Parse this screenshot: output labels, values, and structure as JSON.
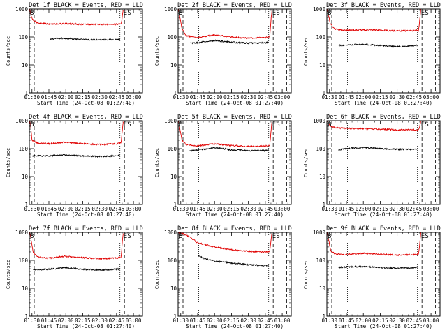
{
  "colors": {
    "events": "#000000",
    "lld": "#e00000",
    "background": "#ffffff",
    "axes": "#000000"
  },
  "chart_data": [
    {
      "type": "line",
      "title": "Det 1f BLACK = Events, RED = LLD",
      "xlabel": "Start Time (24-Oct-08 01:27:40)",
      "ylabel": "Counts/sec",
      "yscale": "log",
      "ylim": [
        1,
        1000
      ],
      "xlim": [
        "01:27:40",
        "03:08:00"
      ],
      "x_tick_labels": [
        "01:30",
        "01:45",
        "02:00",
        "02:15",
        "02:30",
        "02:45",
        "03:00"
      ],
      "y_tick_labels": [
        "1",
        "10",
        "100",
        "1000"
      ],
      "annotations": [
        {
          "text": "B",
          "x": "01:27:40"
        },
        {
          "text": "E",
          "x": "02:50:30"
        },
        {
          "text": "S",
          "x": "02:54:00"
        }
      ],
      "vlines": {
        "dashed": [
          "01:32:00",
          "02:52:00",
          "03:04:00"
        ],
        "dotted": [
          "01:46:00",
          "02:48:00"
        ]
      },
      "series": [
        {
          "name": "Events",
          "x": [
            "01:46",
            "01:50",
            "02:00",
            "02:10",
            "02:20",
            "02:30",
            "02:40",
            "02:48"
          ],
          "values": [
            80,
            88,
            90,
            82,
            80,
            80,
            80,
            82
          ]
        },
        {
          "name": "LLD",
          "x": [
            "01:28",
            "01:29",
            "01:31",
            "01:35",
            "01:45",
            "02:00",
            "02:15",
            "02:30",
            "02:45",
            "02:49",
            "02:50",
            "02:51"
          ],
          "values": [
            1000,
            600,
            400,
            320,
            290,
            300,
            285,
            280,
            285,
            290,
            500,
            1000
          ]
        }
      ]
    },
    {
      "type": "line",
      "title": "Det 2f BLACK = Events, RED = LLD",
      "xlabel": "Start Time (24-Oct-08 01:27:40)",
      "ylabel": "Counts/sec",
      "yscale": "log",
      "ylim": [
        1,
        1000
      ],
      "xlim": [
        "01:27:40",
        "03:08:00"
      ],
      "x_tick_labels": [
        "01:30",
        "01:45",
        "02:00",
        "02:15",
        "02:30",
        "02:45",
        "03:00"
      ],
      "y_tick_labels": [
        "1",
        "10",
        "100",
        "1000"
      ],
      "annotations": [
        {
          "text": "B",
          "x": "01:27:40"
        },
        {
          "text": "E",
          "x": "02:50:30"
        },
        {
          "text": "S",
          "x": "02:54:00"
        }
      ],
      "vlines": {
        "dashed": [
          "01:32:00",
          "02:52:00",
          "03:04:00"
        ],
        "dotted": [
          "01:46:00",
          "02:48:00"
        ]
      },
      "series": [
        {
          "name": "Events",
          "x": [
            "01:38",
            "01:45",
            "02:00",
            "02:15",
            "02:30",
            "02:45",
            "02:48"
          ],
          "values": [
            60,
            62,
            75,
            65,
            60,
            62,
            65
          ]
        },
        {
          "name": "LLD",
          "x": [
            "01:28",
            "01:29",
            "01:31",
            "01:35",
            "01:45",
            "02:00",
            "02:15",
            "02:30",
            "02:45",
            "02:49",
            "02:50",
            "02:51"
          ],
          "values": [
            1000,
            600,
            200,
            110,
            95,
            120,
            100,
            90,
            95,
            100,
            400,
            1000
          ]
        }
      ]
    },
    {
      "type": "line",
      "title": "Det 3f BLACK = Events, RED = LLD",
      "xlabel": "Start Time (24-Oct-08 01:27:40)",
      "ylabel": "Counts/sec",
      "yscale": "log",
      "ylim": [
        1,
        1000
      ],
      "xlim": [
        "01:27:40",
        "03:08:00"
      ],
      "x_tick_labels": [
        "01:30",
        "01:45",
        "02:00",
        "02:15",
        "02:30",
        "02:45",
        "03:00"
      ],
      "y_tick_labels": [
        "1",
        "10",
        "100",
        "1000"
      ],
      "annotations": [
        {
          "text": "B",
          "x": "01:27:40"
        },
        {
          "text": "E",
          "x": "02:50:30"
        },
        {
          "text": "S",
          "x": "02:54:00"
        }
      ],
      "vlines": {
        "dashed": [
          "01:32:00",
          "02:52:00",
          "03:04:00"
        ],
        "dotted": [
          "01:46:00",
          "02:48:00"
        ]
      },
      "series": [
        {
          "name": "Events",
          "x": [
            "01:38",
            "01:45",
            "02:00",
            "02:15",
            "02:30",
            "02:45",
            "02:48"
          ],
          "values": [
            50,
            52,
            55,
            50,
            45,
            48,
            50
          ]
        },
        {
          "name": "LLD",
          "x": [
            "01:28",
            "01:29",
            "01:31",
            "01:35",
            "01:45",
            "02:00",
            "02:15",
            "02:30",
            "02:45",
            "02:49",
            "02:50",
            "02:51"
          ],
          "values": [
            1000,
            600,
            280,
            190,
            175,
            180,
            175,
            165,
            170,
            175,
            400,
            1000
          ]
        }
      ]
    },
    {
      "type": "line",
      "title": "Det 4f BLACK = Events, RED = LLD",
      "xlabel": "Start Time (24-Oct-08 01:27:40)",
      "ylabel": "Counts/sec",
      "yscale": "log",
      "ylim": [
        1,
        1000
      ],
      "xlim": [
        "01:27:40",
        "03:08:00"
      ],
      "x_tick_labels": [
        "01:30",
        "01:45",
        "02:00",
        "02:15",
        "02:30",
        "02:45",
        "03:00"
      ],
      "y_tick_labels": [
        "1",
        "10",
        "100",
        "1000"
      ],
      "annotations": [
        {
          "text": "B",
          "x": "01:27:40"
        },
        {
          "text": "E",
          "x": "02:50:30"
        },
        {
          "text": "S",
          "x": "02:54:00"
        }
      ],
      "vlines": {
        "dashed": [
          "01:32:00",
          "02:52:00",
          "03:04:00"
        ],
        "dotted": [
          "01:46:00",
          "02:48:00"
        ]
      },
      "series": [
        {
          "name": "Events",
          "x": [
            "01:30",
            "01:45",
            "02:00",
            "02:15",
            "02:30",
            "02:45",
            "02:48"
          ],
          "values": [
            55,
            55,
            60,
            55,
            52,
            55,
            58
          ]
        },
        {
          "name": "LLD",
          "x": [
            "01:28",
            "01:29",
            "01:30",
            "01:35",
            "01:45",
            "02:00",
            "02:15",
            "02:30",
            "02:45",
            "02:49",
            "02:50",
            "02:51"
          ],
          "values": [
            1000,
            600,
            200,
            160,
            150,
            170,
            150,
            140,
            150,
            160,
            400,
            1000
          ]
        }
      ]
    },
    {
      "type": "line",
      "title": "Det 5f BLACK = Events, RED = LLD",
      "xlabel": "Start Time (24-Oct-08 01:27:40)",
      "ylabel": "Counts/sec",
      "yscale": "log",
      "ylim": [
        1,
        1000
      ],
      "xlim": [
        "01:27:40",
        "03:08:00"
      ],
      "x_tick_labels": [
        "01:30",
        "01:45",
        "02:00",
        "02:15",
        "02:30",
        "02:45",
        "03:00"
      ],
      "y_tick_labels": [
        "1",
        "10",
        "100",
        "1000"
      ],
      "annotations": [
        {
          "text": "B",
          "x": "01:27:40"
        },
        {
          "text": "E",
          "x": "02:50:30"
        },
        {
          "text": "S",
          "x": "02:54:00"
        }
      ],
      "vlines": {
        "dashed": [
          "01:32:00",
          "02:52:00",
          "03:04:00"
        ],
        "dotted": [
          "01:46:00",
          "02:48:00"
        ]
      },
      "series": [
        {
          "name": "Events",
          "x": [
            "01:38",
            "01:45",
            "02:00",
            "02:15",
            "02:30",
            "02:45",
            "02:48"
          ],
          "values": [
            85,
            88,
            110,
            90,
            85,
            85,
            90
          ]
        },
        {
          "name": "LLD",
          "x": [
            "01:28",
            "01:29",
            "01:31",
            "01:35",
            "01:45",
            "02:00",
            "02:15",
            "02:30",
            "02:45",
            "02:49",
            "02:50",
            "02:51"
          ],
          "values": [
            1000,
            600,
            200,
            140,
            125,
            150,
            130,
            120,
            125,
            135,
            400,
            1000
          ]
        }
      ]
    },
    {
      "type": "line",
      "title": "Det 6f BLACK = Events, RED = LLD",
      "xlabel": "Start Time (24-Oct-08 01:27:40)",
      "ylabel": "Counts/sec",
      "yscale": "log",
      "ylim": [
        1,
        1000
      ],
      "xlim": [
        "01:27:40",
        "03:08:00"
      ],
      "x_tick_labels": [
        "01:30",
        "01:45",
        "02:00",
        "02:15",
        "02:30",
        "02:45",
        "03:00"
      ],
      "y_tick_labels": [
        "1",
        "10",
        "100",
        "1000"
      ],
      "annotations": [
        {
          "text": "B",
          "x": "01:27:40"
        },
        {
          "text": "E",
          "x": "02:50:30"
        },
        {
          "text": "S",
          "x": "02:54:00"
        }
      ],
      "vlines": {
        "dashed": [
          "01:32:00",
          "02:52:00",
          "03:04:00"
        ],
        "dotted": [
          "01:46:00",
          "02:48:00"
        ]
      },
      "series": [
        {
          "name": "Events",
          "x": [
            "01:38",
            "01:45",
            "02:00",
            "02:15",
            "02:30",
            "02:45",
            "02:48"
          ],
          "values": [
            90,
            100,
            110,
            100,
            95,
            95,
            100
          ]
        },
        {
          "name": "LLD",
          "x": [
            "01:28",
            "01:29",
            "01:31",
            "01:35",
            "01:45",
            "02:00",
            "02:15",
            "02:30",
            "02:45",
            "02:49",
            "02:50",
            "02:51"
          ],
          "values": [
            1000,
            800,
            650,
            560,
            530,
            520,
            500,
            470,
            470,
            480,
            600,
            1000
          ]
        }
      ]
    },
    {
      "type": "line",
      "title": "Det 7f BLACK = Events, RED = LLD",
      "xlabel": "Start Time (24-Oct-08 01:27:40)",
      "ylabel": "Counts/sec",
      "yscale": "log",
      "ylim": [
        1,
        1000
      ],
      "xlim": [
        "01:27:40",
        "03:08:00"
      ],
      "x_tick_labels": [
        "01:30",
        "01:45",
        "02:00",
        "02:15",
        "02:30",
        "02:45",
        "03:00"
      ],
      "y_tick_labels": [
        "1",
        "10",
        "100",
        "1000"
      ],
      "annotations": [
        {
          "text": "B",
          "x": "01:27:40"
        },
        {
          "text": "E",
          "x": "02:50:30"
        },
        {
          "text": "S",
          "x": "02:54:00"
        }
      ],
      "vlines": {
        "dashed": [
          "01:32:00",
          "02:52:00",
          "03:04:00"
        ],
        "dotted": [
          "01:46:00",
          "02:48:00"
        ]
      },
      "series": [
        {
          "name": "Events",
          "x": [
            "01:31",
            "01:45",
            "02:00",
            "02:15",
            "02:30",
            "02:45",
            "02:48"
          ],
          "values": [
            45,
            48,
            55,
            48,
            45,
            48,
            50
          ]
        },
        {
          "name": "LLD",
          "x": [
            "01:28",
            "01:29",
            "01:31",
            "01:35",
            "01:45",
            "02:00",
            "02:15",
            "02:30",
            "02:45",
            "02:49",
            "02:50",
            "02:51"
          ],
          "values": [
            1000,
            600,
            200,
            130,
            120,
            140,
            125,
            115,
            120,
            130,
            400,
            1000
          ]
        }
      ]
    },
    {
      "type": "line",
      "title": "Det 8f BLACK = Events, RED = LLD",
      "xlabel": "Start Time (24-Oct-08 01:27:40)",
      "ylabel": "Counts/sec",
      "yscale": "log",
      "ylim": [
        1,
        1000
      ],
      "xlim": [
        "01:27:40",
        "03:08:00"
      ],
      "x_tick_labels": [
        "01:30",
        "01:45",
        "02:00",
        "02:15",
        "02:30",
        "02:45",
        "03:00"
      ],
      "y_tick_labels": [
        "1",
        "10",
        "100",
        "1000"
      ],
      "annotations": [
        {
          "text": "B",
          "x": "01:27:40"
        },
        {
          "text": "E",
          "x": "02:50:30"
        },
        {
          "text": "S",
          "x": "02:54:00"
        }
      ],
      "vlines": {
        "dashed": [
          "01:32:00",
          "02:52:00",
          "03:04:00"
        ],
        "dotted": [
          "01:46:00",
          "02:48:00"
        ]
      },
      "series": [
        {
          "name": "Events",
          "x": [
            "01:45",
            "01:50",
            "02:00",
            "02:15",
            "02:30",
            "02:45",
            "02:48"
          ],
          "values": [
            150,
            120,
            95,
            80,
            70,
            65,
            65
          ]
        },
        {
          "name": "LLD",
          "x": [
            "01:28",
            "01:35",
            "01:40",
            "01:45",
            "02:00",
            "02:15",
            "02:30",
            "02:45",
            "02:49",
            "02:50",
            "02:51"
          ],
          "values": [
            1000,
            800,
            600,
            420,
            300,
            240,
            210,
            200,
            210,
            500,
            1000
          ]
        }
      ]
    },
    {
      "type": "line",
      "title": "Det 9f BLACK = Events, RED = LLD",
      "xlabel": "Start Time (24-Oct-08 01:27:40)",
      "ylabel": "Counts/sec",
      "yscale": "log",
      "ylim": [
        1,
        1000
      ],
      "xlim": [
        "01:27:40",
        "03:08:00"
      ],
      "x_tick_labels": [
        "01:30",
        "01:45",
        "02:00",
        "02:15",
        "02:30",
        "02:45",
        "03:00"
      ],
      "y_tick_labels": [
        "1",
        "10",
        "100",
        "1000"
      ],
      "annotations": [
        {
          "text": "B",
          "x": "01:27:40"
        },
        {
          "text": "E",
          "x": "02:50:30"
        },
        {
          "text": "S",
          "x": "02:54:00"
        }
      ],
      "vlines": {
        "dashed": [
          "01:32:00",
          "02:52:00",
          "03:04:00"
        ],
        "dotted": [
          "01:46:00",
          "02:48:00"
        ]
      },
      "series": [
        {
          "name": "Events",
          "x": [
            "01:38",
            "01:45",
            "02:00",
            "02:15",
            "02:30",
            "02:45",
            "02:48"
          ],
          "values": [
            55,
            58,
            60,
            55,
            52,
            55,
            58
          ]
        },
        {
          "name": "LLD",
          "x": [
            "01:28",
            "01:29",
            "01:31",
            "01:35",
            "01:45",
            "02:00",
            "02:15",
            "02:30",
            "02:45",
            "02:49",
            "02:50",
            "02:51"
          ],
          "values": [
            1000,
            600,
            220,
            170,
            160,
            180,
            165,
            155,
            160,
            170,
            400,
            1000
          ]
        }
      ]
    }
  ]
}
